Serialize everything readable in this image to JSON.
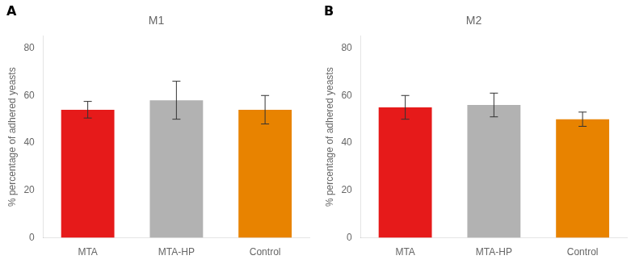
{
  "chart_data": [
    {
      "type": "bar",
      "title": "M1",
      "annotations": [
        "A"
      ],
      "categories": [
        "MTA",
        "MTA-HP",
        "Control"
      ],
      "values": [
        54.0,
        58.0,
        54.0
      ],
      "errors": [
        3.5,
        8.0,
        6.0
      ],
      "colors": [
        "#e61a1a",
        "#b2b2b2",
        "#e88300"
      ],
      "ylabel": "% percentage of adhered yeasts",
      "ylim": [
        0,
        85
      ],
      "yticks": [
        0,
        20,
        40,
        60,
        80
      ],
      "grid": false
    },
    {
      "type": "bar",
      "title": "M2",
      "annotations": [
        "B"
      ],
      "categories": [
        "MTA",
        "MTA-HP",
        "Control"
      ],
      "values": [
        55.0,
        56.0,
        50.0
      ],
      "errors": [
        5.0,
        5.0,
        3.0
      ],
      "colors": [
        "#e61a1a",
        "#b2b2b2",
        "#e88300"
      ],
      "ylabel": "% percentage of adhered yeasts",
      "ylim": [
        0,
        85
      ],
      "yticks": [
        0,
        20,
        40,
        60,
        80
      ],
      "grid": false
    }
  ]
}
